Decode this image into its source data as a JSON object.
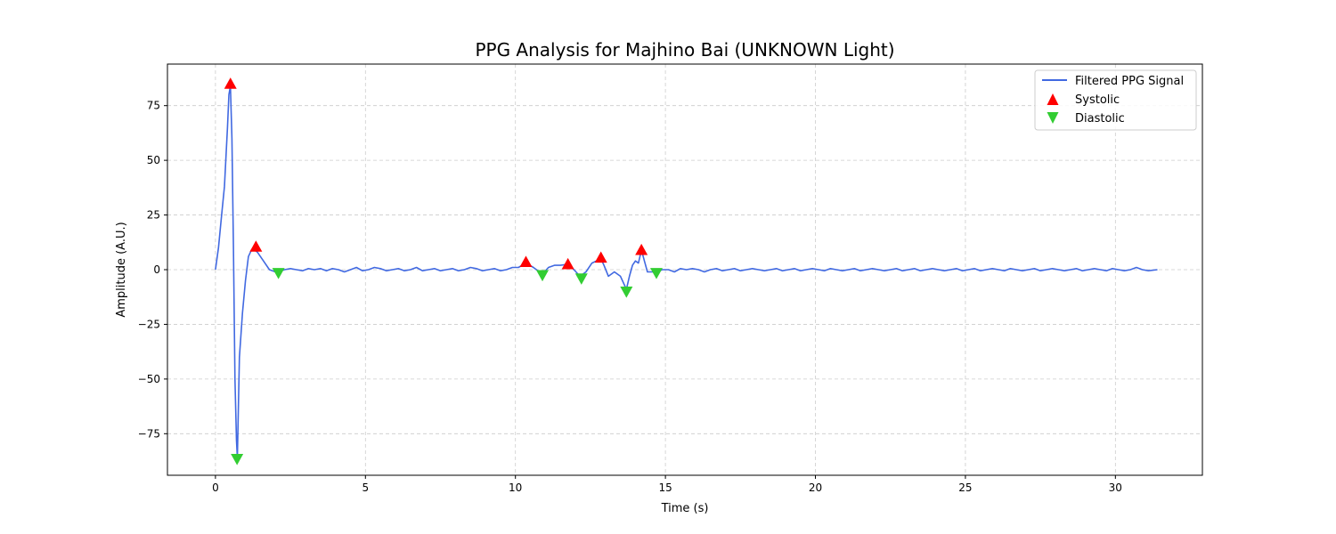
{
  "chart_data": {
    "type": "line",
    "title": "PPG Analysis for Majhino Bai (UNKNOWN Light)",
    "xlabel": "Time (s)",
    "ylabel": "Amplitude (A.U.)",
    "xlim": [
      -1.6,
      32.9
    ],
    "ylim": [
      -94,
      94
    ],
    "xticks": [
      0,
      5,
      10,
      15,
      20,
      25,
      30
    ],
    "yticks": [
      -75,
      -50,
      -25,
      0,
      25,
      50,
      75
    ],
    "xtick_labels": [
      "0",
      "5",
      "10",
      "15",
      "20",
      "25",
      "30"
    ],
    "ytick_labels": [
      "−75",
      "−50",
      "−25",
      "0",
      "25",
      "50",
      "75"
    ],
    "grid": true,
    "legend_position": "top-right",
    "colors": {
      "signal": "#4169e1",
      "systolic": "#ff0000",
      "diastolic": "#32cd32",
      "grid": "#cccccc"
    },
    "series": [
      {
        "name": "Filtered PPG Signal",
        "kind": "line",
        "x": [
          0,
          0.1,
          0.2,
          0.3,
          0.4,
          0.45,
          0.5,
          0.55,
          0.6,
          0.65,
          0.7,
          0.73,
          0.8,
          0.9,
          1.0,
          1.1,
          1.2,
          1.3,
          1.4,
          1.6,
          1.8,
          2.0,
          2.1,
          2.3,
          2.5,
          2.7,
          2.9,
          3.1,
          3.3,
          3.5,
          3.7,
          3.9,
          4.1,
          4.3,
          4.5,
          4.7,
          4.9,
          5.1,
          5.3,
          5.5,
          5.7,
          5.9,
          6.1,
          6.3,
          6.5,
          6.7,
          6.9,
          7.1,
          7.3,
          7.5,
          7.7,
          7.9,
          8.1,
          8.3,
          8.5,
          8.7,
          8.9,
          9.1,
          9.3,
          9.5,
          9.7,
          9.9,
          10.1,
          10.35,
          10.6,
          10.8,
          10.9,
          11.1,
          11.3,
          11.5,
          11.75,
          11.95,
          12.15,
          12.35,
          12.55,
          12.7,
          12.85,
          12.95,
          13.1,
          13.3,
          13.5,
          13.7,
          13.8,
          13.9,
          14.0,
          14.1,
          14.2,
          14.3,
          14.4,
          14.55,
          14.7,
          14.9,
          15.1,
          15.3,
          15.5,
          15.7,
          15.9,
          16.1,
          16.3,
          16.5,
          16.7,
          16.9,
          17.1,
          17.3,
          17.5,
          17.7,
          17.9,
          18.1,
          18.3,
          18.5,
          18.7,
          18.9,
          19.1,
          19.3,
          19.5,
          19.7,
          19.9,
          20.1,
          20.3,
          20.5,
          20.7,
          20.9,
          21.1,
          21.3,
          21.5,
          21.7,
          21.9,
          22.1,
          22.3,
          22.5,
          22.7,
          22.9,
          23.1,
          23.3,
          23.5,
          23.7,
          23.9,
          24.1,
          24.3,
          24.5,
          24.7,
          24.9,
          25.1,
          25.3,
          25.5,
          25.7,
          25.9,
          26.1,
          26.3,
          26.5,
          26.7,
          26.9,
          27.1,
          27.3,
          27.5,
          27.7,
          27.9,
          28.1,
          28.3,
          28.5,
          28.7,
          28.9,
          29.1,
          29.3,
          29.5,
          29.7,
          29.9,
          30.1,
          30.3,
          30.5,
          30.7,
          30.9,
          31.1,
          31.4
        ],
        "y": [
          0,
          10,
          24,
          38,
          65,
          80,
          84,
          60,
          10,
          -50,
          -78,
          -86,
          -40,
          -20,
          -5,
          6,
          9,
          9,
          8,
          4,
          0,
          -1,
          -1,
          0,
          0.5,
          0,
          -0.5,
          0.5,
          0,
          0.5,
          -0.5,
          0.5,
          0,
          -1,
          0,
          1,
          -0.5,
          0,
          1,
          0.5,
          -0.5,
          0,
          0.5,
          -0.5,
          0,
          1,
          -0.5,
          0,
          0.5,
          -0.5,
          0,
          0.5,
          -0.5,
          0,
          1,
          0.5,
          -0.5,
          0,
          0.5,
          -0.5,
          0,
          1,
          1,
          3,
          1,
          -1,
          -2,
          1,
          2,
          2,
          2.5,
          0,
          -3,
          -1,
          3,
          4,
          5,
          2,
          -3,
          -1,
          -3,
          -9,
          -3,
          2,
          4,
          3,
          9,
          4,
          -1,
          -1,
          -1,
          0,
          0,
          -1,
          0.5,
          0,
          0.5,
          0,
          -1,
          0,
          0.5,
          -0.5,
          0,
          0.5,
          -0.5,
          0,
          0.5,
          0,
          -0.5,
          0,
          0.5,
          -0.5,
          0,
          0.5,
          -0.5,
          0,
          0.5,
          0,
          -0.5,
          0.5,
          0,
          -0.5,
          0,
          0.5,
          -0.5,
          0,
          0.5,
          0,
          -0.5,
          0,
          0.5,
          -0.5,
          0,
          0.5,
          -0.5,
          0,
          0.5,
          0,
          -0.5,
          0,
          0.5,
          -0.5,
          0,
          0.5,
          -0.5,
          0,
          0.5,
          0,
          -0.5,
          0.5,
          0,
          -0.5,
          0,
          0.5,
          -0.5,
          0,
          0.5,
          0,
          -0.5,
          0,
          0.5,
          -0.5,
          0,
          0.5,
          0,
          -0.5,
          0.5,
          0,
          -0.5,
          0,
          1,
          0,
          -0.5,
          0
        ]
      },
      {
        "name": "Systolic",
        "kind": "marker-up",
        "x": [
          0.5,
          1.35,
          10.35,
          11.75,
          12.85,
          14.2
        ],
        "y": [
          85,
          10.5,
          3.5,
          2.5,
          5.5,
          9
        ]
      },
      {
        "name": "Diastolic",
        "kind": "marker-down",
        "x": [
          0.72,
          2.1,
          10.9,
          12.2,
          13.7,
          14.7
        ],
        "y": [
          -86.5,
          -1.5,
          -2.5,
          -4,
          -10,
          -1.5
        ]
      }
    ]
  }
}
